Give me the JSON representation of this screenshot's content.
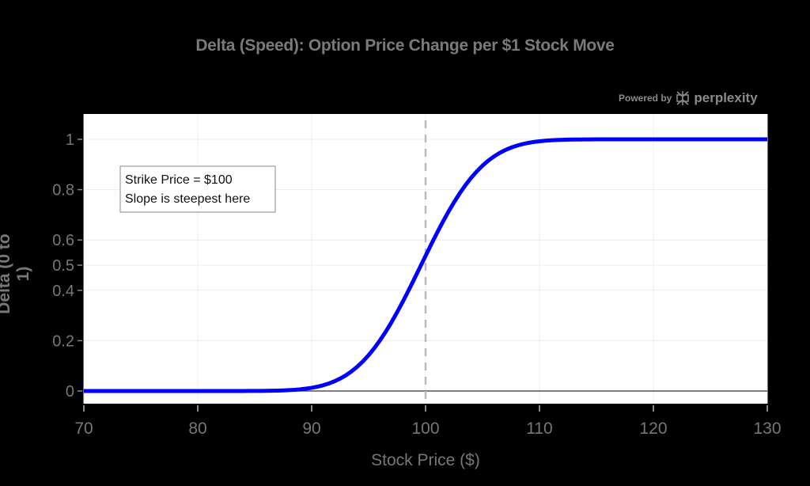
{
  "chart_data": {
    "type": "line",
    "title": "Delta (Speed): Option Price Change per $1 Stock Move",
    "xlabel": "Stock Price ($)",
    "ylabel": "Delta (0 to 1)",
    "xlim": [
      70,
      130
    ],
    "ylim": [
      -0.05,
      1.1
    ],
    "x_ticks": [
      70,
      80,
      90,
      100,
      110,
      120,
      130
    ],
    "y_ticks": [
      0,
      0.2,
      0.4,
      0.5,
      0.6,
      0.8,
      1
    ],
    "y_tick_labels": [
      "0",
      "0.2",
      "0.4",
      "0.5",
      "0.6",
      "0.8",
      "1"
    ],
    "grid": true,
    "series": [
      {
        "name": "Delta",
        "color": "#0000ff",
        "x": [
          70,
          75,
          80,
          85,
          86,
          88,
          90,
          91,
          92,
          93,
          94,
          95,
          96,
          97,
          98,
          99,
          100,
          101,
          102,
          103,
          104,
          105,
          106,
          107,
          108,
          109,
          110,
          112,
          115,
          120,
          125,
          130
        ],
        "values": [
          0.0,
          0.001,
          0.002,
          0.004,
          0.006,
          0.015,
          0.04,
          0.066,
          0.1,
          0.148,
          0.205,
          0.27,
          0.34,
          0.41,
          0.48,
          0.545,
          0.54,
          0.62,
          0.69,
          0.745,
          0.8,
          0.85,
          0.89,
          0.92,
          0.945,
          0.96,
          0.975,
          0.985,
          0.993,
          0.998,
          0.999,
          1.0
        ]
      }
    ],
    "reference_line": {
      "x": 100,
      "style": "dashed",
      "color": "#bbbbbb"
    },
    "annotation": {
      "lines": [
        "Strike Price = $100",
        "Slope is steepest here"
      ]
    }
  },
  "watermark": {
    "prefix": "Powered by",
    "brand": "perplexity"
  }
}
